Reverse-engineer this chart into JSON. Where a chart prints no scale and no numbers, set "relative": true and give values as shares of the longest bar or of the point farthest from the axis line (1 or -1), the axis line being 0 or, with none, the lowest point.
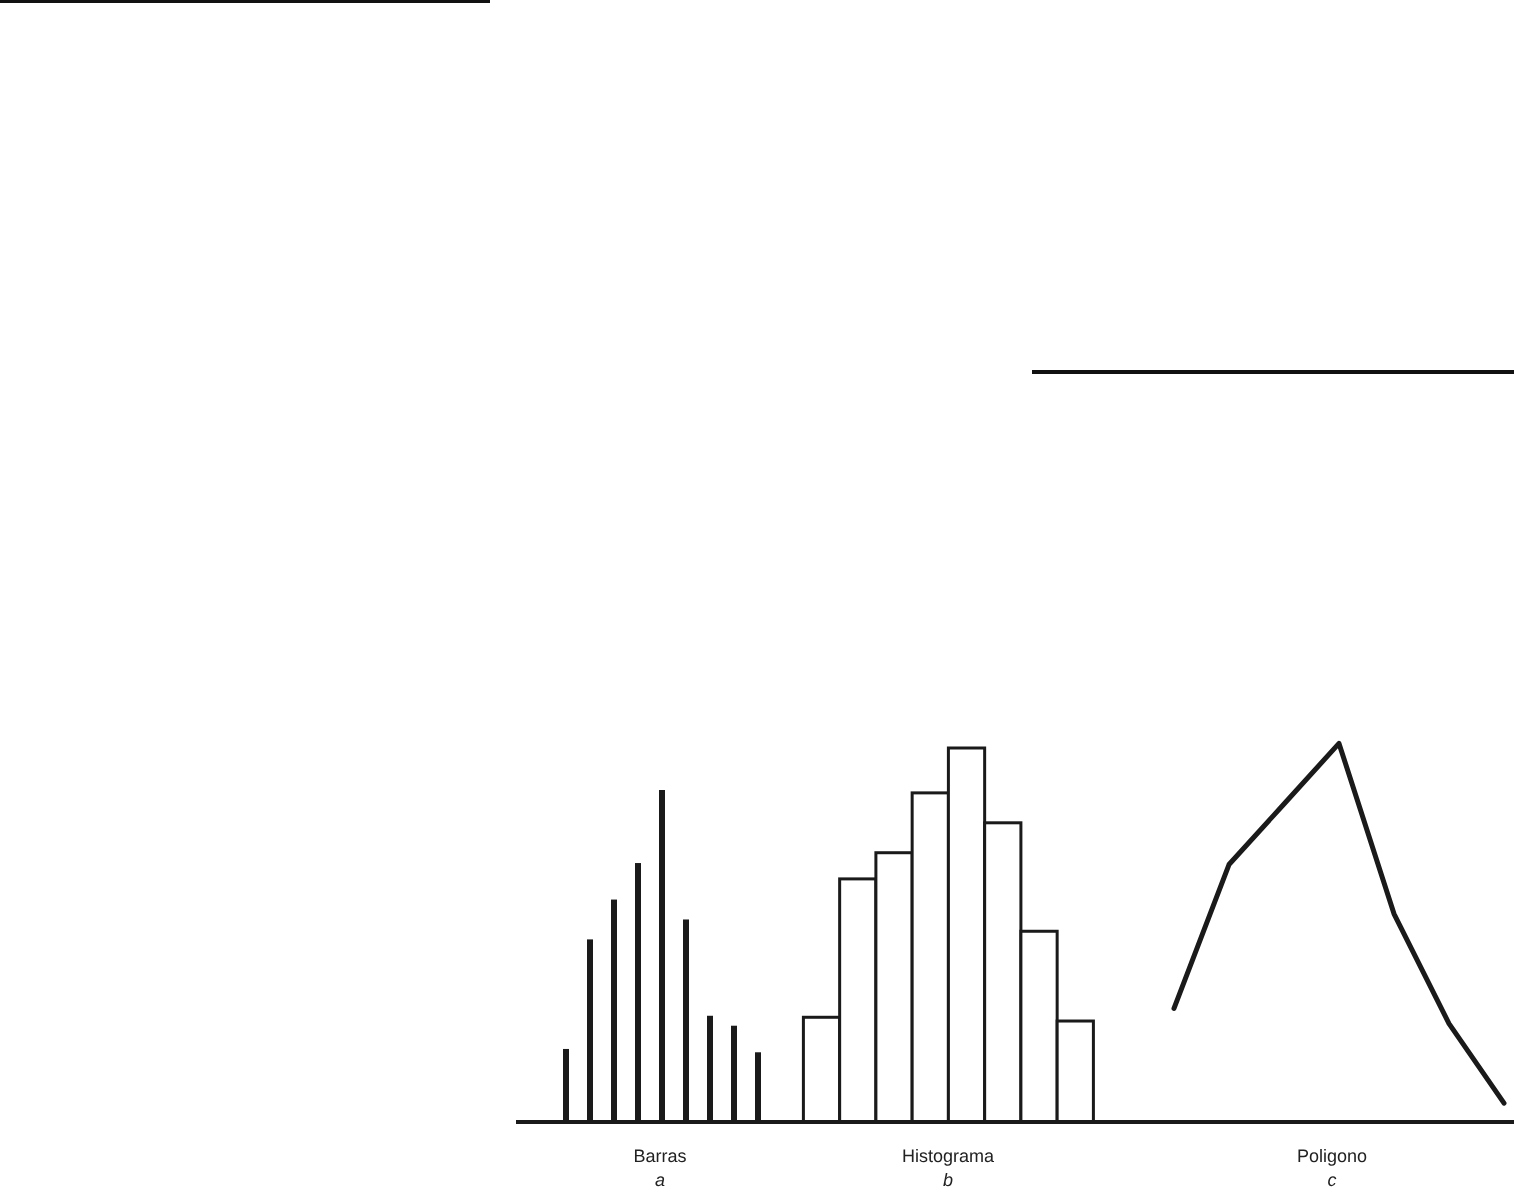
{
  "chart_data": [
    {
      "type": "bar",
      "xlabel": "Barras",
      "annotations": [
        "a"
      ],
      "categories": [
        null,
        null,
        null,
        null,
        null,
        null,
        null,
        null,
        null
      ],
      "values": [
        0.22,
        0.55,
        0.67,
        0.78,
        1,
        0.61,
        0.32,
        0.29,
        0.21
      ],
      "relative": true,
      "color": "#1a1a1a"
    },
    {
      "type": "bar",
      "xlabel": "Histograma",
      "annotations": [
        "b"
      ],
      "categories": [
        null,
        null,
        null,
        null,
        null,
        null,
        null,
        null
      ],
      "values": [
        0.28,
        0.65,
        0.72,
        0.88,
        1,
        0.8,
        0.51,
        0.27
      ],
      "relative": true,
      "color": "#ffffff"
    },
    {
      "type": "line",
      "xlabel": "Poligono",
      "annotations": [
        "c"
      ],
      "categories": [
        null,
        null,
        null,
        null,
        null,
        null,
        null
      ],
      "values": [
        0.3,
        0.68,
        0.84,
        1,
        0.55,
        0.26,
        0.05
      ],
      "relative": true,
      "color": "#1a1a1a"
    }
  ]
}
